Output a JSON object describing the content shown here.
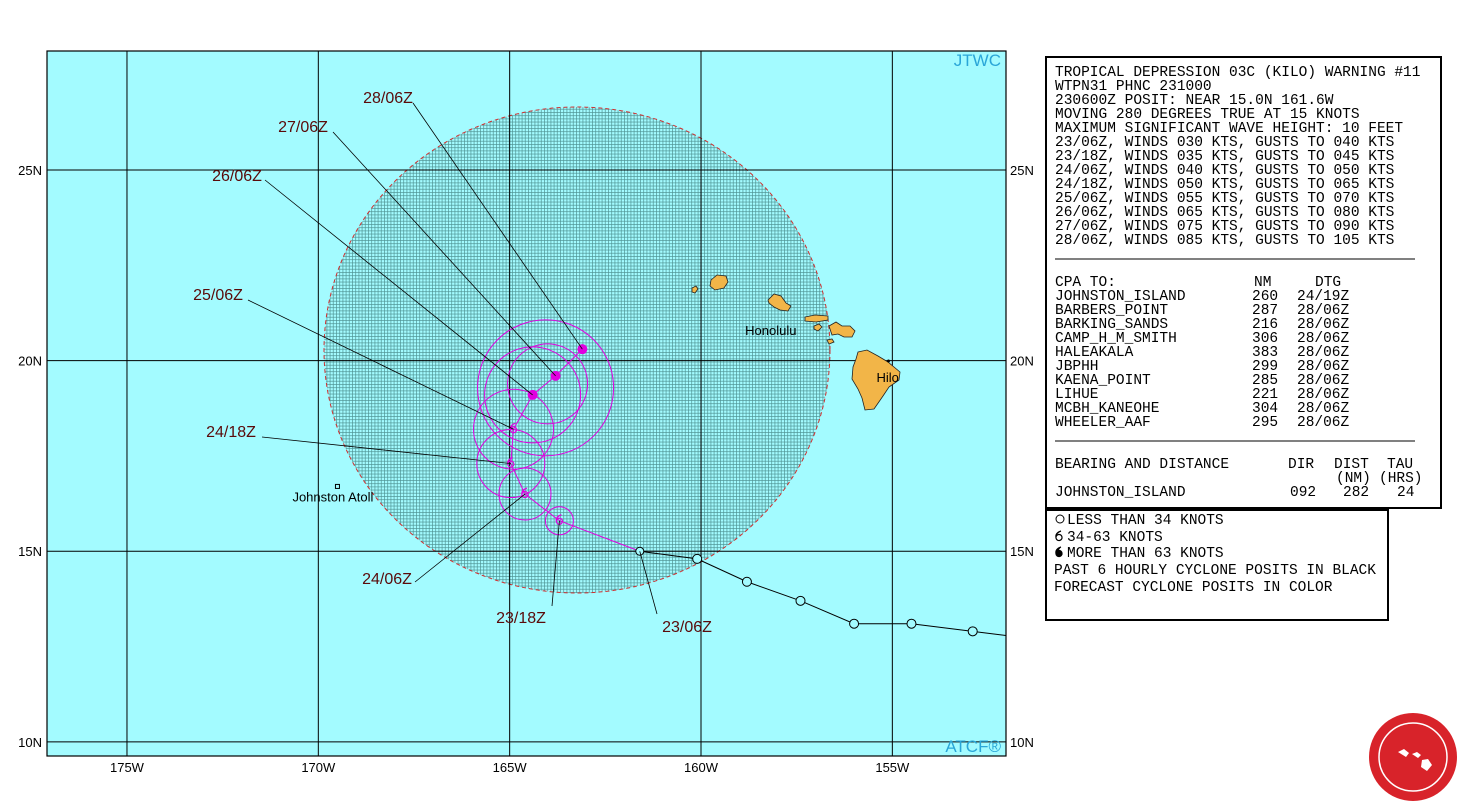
{
  "map": {
    "lon_range": [
      177.09,
      152.03
    ],
    "lat_range": [
      9.63,
      28.12
    ],
    "lon_ticks": [
      {
        "value": 175,
        "label": "175W"
      },
      {
        "value": 170,
        "label": "170W"
      },
      {
        "value": 165,
        "label": "165W"
      },
      {
        "value": 160,
        "label": "160W"
      },
      {
        "value": 155,
        "label": "155W"
      }
    ],
    "lat_ticks": [
      {
        "value": 25,
        "label": "25N"
      },
      {
        "value": 20,
        "label": "20N"
      },
      {
        "value": 15,
        "label": "15N"
      },
      {
        "value": 10,
        "label": "10N"
      }
    ],
    "top_right_label": "JTWC",
    "bottom_right_label": "ATCF®",
    "places": [
      {
        "label": "Honolulu",
        "lat": 20.8,
        "lon": 157.4
      },
      {
        "label": "Hilo",
        "lat": 19.7,
        "lon": 155.1
      },
      {
        "label": "Johnston Atoll",
        "lat": 16.7,
        "lon": 169.5
      }
    ],
    "current": {
      "label": "23/06Z",
      "lat": 15.0,
      "lon": 161.6
    },
    "past_track": [
      {
        "lat": 14.8,
        "lon": 160.1
      },
      {
        "lat": 14.2,
        "lon": 158.8
      },
      {
        "lat": 13.7,
        "lon": 157.4
      },
      {
        "lat": 13.1,
        "lon": 156.0
      },
      {
        "lat": 13.1,
        "lon": 154.5
      },
      {
        "lat": 12.9,
        "lon": 152.9
      }
    ],
    "forecast": [
      {
        "label": "23/18Z",
        "lat": 15.8,
        "lon": 163.7,
        "marker": "storm"
      },
      {
        "label": "24/06Z",
        "lat": 16.5,
        "lon": 164.6,
        "marker": "storm"
      },
      {
        "label": "24/18Z",
        "lat": 17.3,
        "lon": 164.97,
        "marker": "storm"
      },
      {
        "label": "25/06Z",
        "lat": 18.2,
        "lon": 164.9,
        "marker": "storm"
      },
      {
        "label": "26/06Z",
        "lat": 19.1,
        "lon": 164.4,
        "marker": "dot"
      },
      {
        "label": "27/06Z",
        "lat": 19.6,
        "lon": 163.8,
        "marker": "dot"
      },
      {
        "label": "28/06Z",
        "lat": 20.3,
        "lon": 163.1,
        "marker": "dot"
      }
    ],
    "track_color": "#e000e0",
    "past_color": "#000000"
  },
  "warning": {
    "lines": [
      "TROPICAL DEPRESSION 03C (KILO) WARNING #11",
      "WTPN31 PHNC 231000",
      "230600Z POSIT: NEAR 15.0N 161.6W",
      "MOVING 280 DEGREES TRUE AT 15 KNOTS",
      "MAXIMUM SIGNIFICANT WAVE HEIGHT: 10 FEET",
      "23/06Z, WINDS 030 KTS, GUSTS TO 040 KTS",
      "23/18Z, WINDS 035 KTS, GUSTS TO 045 KTS",
      "24/06Z, WINDS 040 KTS, GUSTS TO 050 KTS",
      "24/18Z, WINDS 050 KTS, GUSTS TO 065 KTS",
      "25/06Z, WINDS 055 KTS, GUSTS TO 070 KTS",
      "26/06Z, WINDS 065 KTS, GUSTS TO 080 KTS",
      "27/06Z, WINDS 075 KTS, GUSTS TO 090 KTS",
      "28/06Z, WINDS 085 KTS, GUSTS TO 105 KTS"
    ]
  },
  "cpa": {
    "header": [
      "CPA TO:",
      "NM",
      "DTG"
    ],
    "rows": [
      [
        "JOHNSTON_ISLAND",
        260,
        "24/19Z"
      ],
      [
        "BARBERS_POINT",
        287,
        "28/06Z"
      ],
      [
        "BARKING_SANDS",
        216,
        "28/06Z"
      ],
      [
        "CAMP_H_M_SMITH",
        306,
        "28/06Z"
      ],
      [
        "HALEAKALA",
        383,
        "28/06Z"
      ],
      [
        "JBPHH",
        299,
        "28/06Z"
      ],
      [
        "KAENA_POINT",
        285,
        "28/06Z"
      ],
      [
        "LIHUE",
        221,
        "28/06Z"
      ],
      [
        "MCBH_KANEOHE",
        304,
        "28/06Z"
      ],
      [
        "WHEELER_AAF",
        295,
        "28/06Z"
      ]
    ]
  },
  "bearing": {
    "header": [
      "BEARING AND DISTANCE",
      "DIR",
      "DIST",
      "TAU"
    ],
    "units": [
      "(NM)",
      "(HRS)"
    ],
    "rows": [
      [
        "JOHNSTON_ISLAND",
        "092",
        282,
        24
      ]
    ]
  },
  "legend": {
    "items": [
      "LESS THAN 34 KNOTS",
      "34-63 KNOTS",
      "MORE THAN 63 KNOTS"
    ],
    "notes": [
      "PAST 6 HOURLY CYCLONE POSITS IN BLACK",
      "FORECAST CYCLONE POSITS IN COLOR"
    ]
  }
}
